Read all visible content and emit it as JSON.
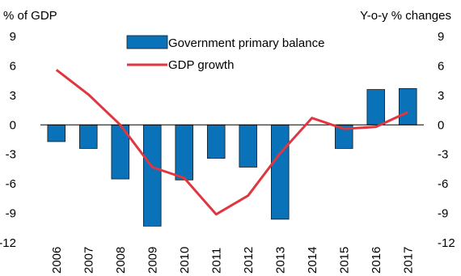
{
  "chart_data": {
    "type": "bar",
    "categories": [
      "2006",
      "2007",
      "2008",
      "2009",
      "2010",
      "2011",
      "2012",
      "2013",
      "2014",
      "2015",
      "2016",
      "2017"
    ],
    "series": [
      {
        "name": "Government primary balance",
        "type": "bar",
        "axis": "left",
        "values": [
          -1.7,
          -2.4,
          -5.5,
          -10.3,
          -5.6,
          -3.4,
          -4.3,
          -9.6,
          null,
          -2.4,
          3.6,
          3.7
        ]
      },
      {
        "name": "GDP growth",
        "type": "line",
        "axis": "right",
        "values": [
          5.6,
          3.1,
          0.0,
          -4.3,
          -5.4,
          -9.1,
          -7.2,
          -2.9,
          0.7,
          -0.4,
          -0.2,
          1.3
        ]
      }
    ],
    "left_axis_label": "% of GDP",
    "right_axis_label": "Y-o-y % changes",
    "yticks": [
      9,
      6,
      3,
      0,
      -3,
      -6,
      -9,
      -12
    ],
    "ylim": [
      -12,
      9
    ],
    "colors": {
      "bar": "#0a72b8",
      "bar_edge": "#1a1a1a",
      "line": "#e0363f",
      "axis": "#000000"
    },
    "legend_position": "top"
  }
}
